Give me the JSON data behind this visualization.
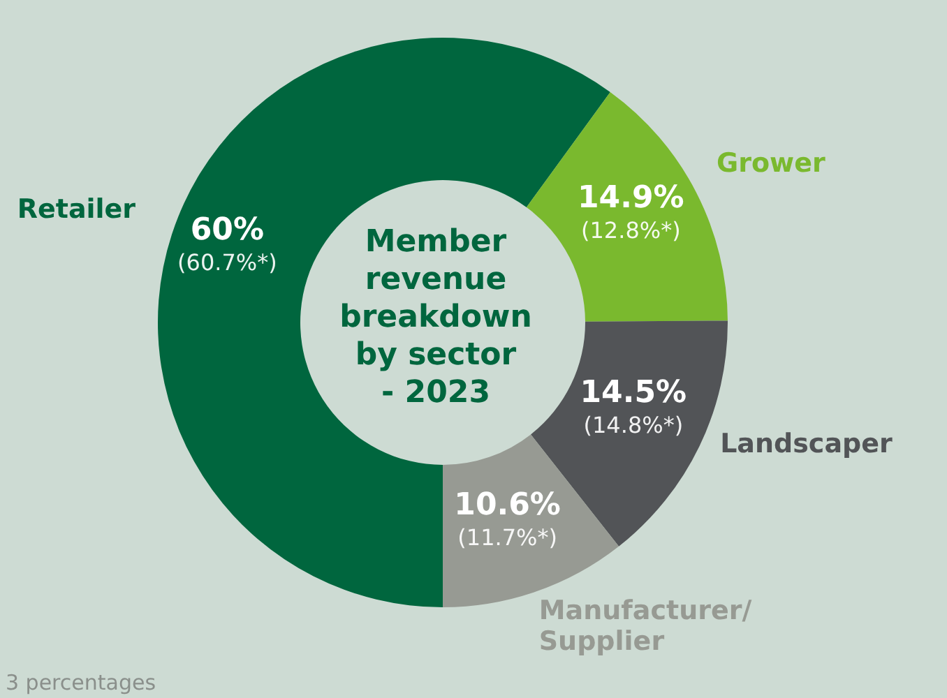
{
  "chart_data": {
    "type": "donut",
    "title": "Member revenue breakdown by sector - 2023",
    "categories": [
      "Retailer",
      "Grower",
      "Landscaper",
      "Manufacturer/Supplier"
    ],
    "values": [
      60,
      14.9,
      14.5,
      10.6
    ],
    "colors": [
      "#00663e",
      "#7ab92e",
      "#525457",
      "#979a93"
    ],
    "value_labels": [
      "60%\n(60.7%*)",
      "14.9%\n(12.8%*)",
      "14.5%\n(14.8%*)",
      "10.6%\n(11.7%*)"
    ],
    "annotations": [
      "3 percentages"
    ]
  }
}
